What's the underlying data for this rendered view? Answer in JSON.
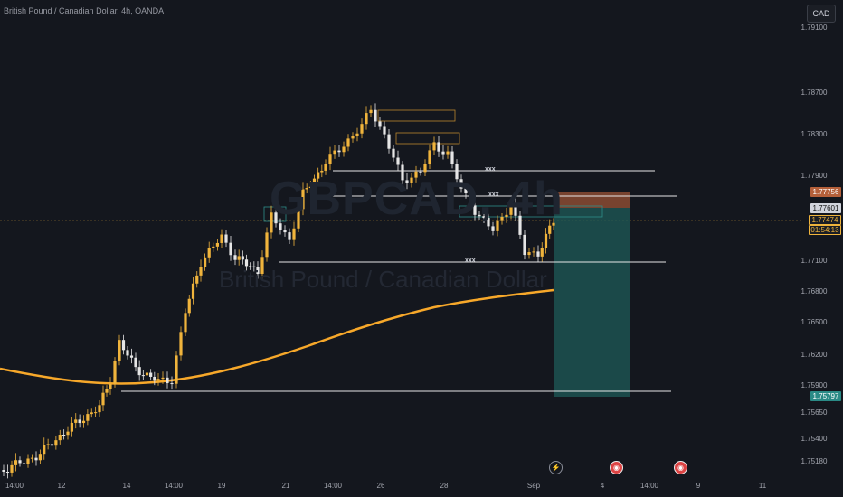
{
  "header": {
    "symbol_title": "British Pound / Canadian Dollar, 4h, OANDA",
    "currency_button": "CAD"
  },
  "watermark": {
    "ticker": "GBPCAD, 4h",
    "name": "British Pound / Canadian Dollar"
  },
  "price_axis": {
    "labels": [
      "1.79100",
      "1.78700",
      "1.78300",
      "1.77900",
      "1.77100",
      "1.76800",
      "1.76500",
      "1.76200",
      "1.75900",
      "1.75650",
      "1.75400",
      "1.75180"
    ],
    "tags": {
      "target": "1.77756",
      "entry": "1.77601",
      "current_price": "1.77474",
      "countdown": "01:54:13",
      "stop": "1.75797"
    }
  },
  "time_axis": {
    "labels": [
      "14:00",
      "12",
      "14",
      "14:00",
      "19",
      "21",
      "14:00",
      "26",
      "28",
      "Sep",
      "4",
      "14:00",
      "9",
      "11"
    ]
  },
  "level_markers": {
    "label": "xxx"
  },
  "events": [
    "lightning-icon",
    "earnings-icon",
    "earnings-icon"
  ],
  "colors": {
    "up": "#f0b43c",
    "down": "#e6e6e6",
    "ma": "#f7a82a",
    "bg": "#14171e",
    "profit_zone": "#1e5b58",
    "loss_zone": "#8a4b33"
  }
}
